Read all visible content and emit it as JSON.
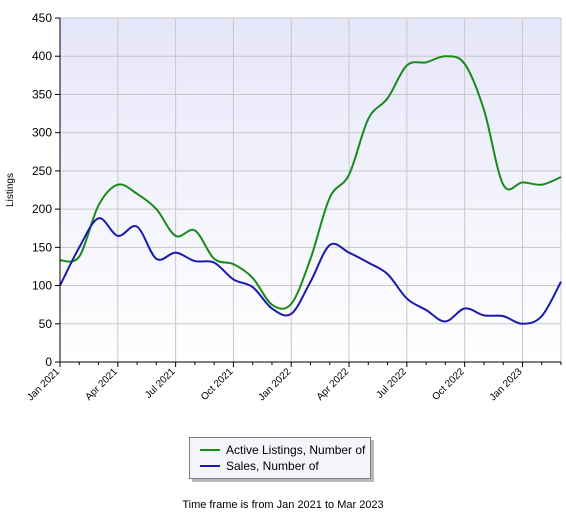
{
  "chart_data": {
    "type": "line",
    "ylabel": "Listings",
    "ylim": [
      0,
      450
    ],
    "yticks": [
      0,
      50,
      100,
      150,
      200,
      250,
      300,
      350,
      400,
      450
    ],
    "grid": true,
    "x": [
      "Jan 2021",
      "Feb 2021",
      "Mar 2021",
      "Apr 2021",
      "May 2021",
      "Jun 2021",
      "Jul 2021",
      "Aug 2021",
      "Sep 2021",
      "Oct 2021",
      "Nov 2021",
      "Dec 2021",
      "Jan 2022",
      "Feb 2022",
      "Mar 2022",
      "Apr 2022",
      "May 2022",
      "Jun 2022",
      "Jul 2022",
      "Aug 2022",
      "Sep 2022",
      "Oct 2022",
      "Nov 2022",
      "Dec 2022",
      "Jan 2023",
      "Feb 2023",
      "Mar 2023"
    ],
    "xtick_labels": [
      "Jan 2021",
      "Apr 2021",
      "Jul 2021",
      "Oct 2021",
      "Jan 2022",
      "Apr 2022",
      "Jul 2022",
      "Oct 2022",
      "Jan 2023"
    ],
    "series": [
      {
        "name": "Active Listings, Number of",
        "color": "#1a8a1a",
        "values": [
          133,
          138,
          205,
          232,
          220,
          200,
          165,
          172,
          135,
          128,
          110,
          75,
          76,
          135,
          215,
          245,
          318,
          345,
          388,
          392,
          400,
          390,
          330,
          232,
          235,
          232,
          242
        ]
      },
      {
        "name": "Sales, Number of",
        "color": "#1a1ab0",
        "values": [
          100,
          150,
          188,
          165,
          177,
          135,
          143,
          132,
          130,
          108,
          98,
          70,
          63,
          105,
          153,
          143,
          130,
          115,
          83,
          68,
          53,
          70,
          61,
          60,
          50,
          60,
          105
        ]
      }
    ],
    "legend_position": "bottom-center"
  },
  "footer": {
    "text": "Time frame is from Jan 2021 to Mar 2023"
  }
}
